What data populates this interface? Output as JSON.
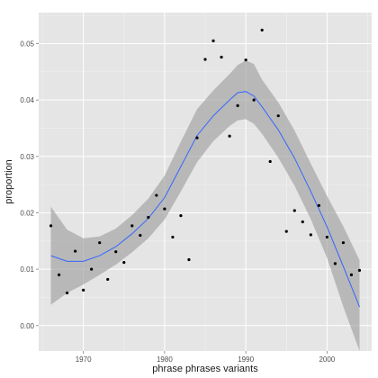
{
  "chart_data": {
    "type": "scatter",
    "xlabel": "phrase phrases variants",
    "ylabel": "proportion",
    "xlim": [
      1964.5,
      2005.5
    ],
    "ylim": [
      -0.0045,
      0.0555
    ],
    "x_ticks": [
      1970,
      1980,
      1990,
      2000
    ],
    "y_ticks": [
      0.0,
      0.01,
      0.02,
      0.03,
      0.04,
      0.05
    ],
    "y_tick_labels": [
      "0.00",
      "0.01",
      "0.02",
      "0.03",
      "0.04",
      "0.05"
    ],
    "grid": true,
    "colors": {
      "panel": "#e5e5e5",
      "grid_major": "#ffffff",
      "grid_minor": "#f2f2f2",
      "point": "#000000",
      "smooth_line": "#3366ff",
      "ribbon": "#999999"
    },
    "points": {
      "x": [
        1966,
        1967,
        1968,
        1969,
        1970,
        1971,
        1972,
        1973,
        1974,
        1975,
        1976,
        1977,
        1978,
        1979,
        1980,
        1981,
        1982,
        1983,
        1984,
        1985,
        1986,
        1987,
        1988,
        1989,
        1990,
        1991,
        1992,
        1993,
        1994,
        1995,
        1996,
        1997,
        1998,
        1999,
        2000,
        2001,
        2002,
        2003,
        2004
      ],
      "y": [
        0.0177,
        0.009,
        0.0058,
        0.0132,
        0.0063,
        0.01,
        0.0147,
        0.0082,
        0.0131,
        0.0112,
        0.0177,
        0.016,
        0.0192,
        0.0231,
        0.0207,
        0.0157,
        0.0195,
        0.0117,
        0.0333,
        0.0472,
        0.0505,
        0.0476,
        0.0336,
        0.039,
        0.0471,
        0.04,
        0.0524,
        0.0291,
        0.0372,
        0.0167,
        0.0204,
        0.0184,
        0.0161,
        0.0213,
        0.0157,
        0.011,
        0.0147,
        0.009,
        0.0098
      ]
    },
    "smooth": {
      "x": [
        1966,
        1968,
        1970,
        1972,
        1974,
        1976,
        1978,
        1980,
        1982,
        1984,
        1986,
        1988,
        1989,
        1990,
        1991,
        1992,
        1994,
        1996,
        1998,
        2000,
        2002,
        2004
      ],
      "y": [
        0.0124,
        0.0114,
        0.0114,
        0.0124,
        0.014,
        0.0163,
        0.019,
        0.0227,
        0.0282,
        0.0337,
        0.0372,
        0.04,
        0.0413,
        0.0415,
        0.0407,
        0.0388,
        0.0347,
        0.0297,
        0.0238,
        0.0175,
        0.0105,
        0.0033
      ],
      "ymin": [
        0.0037,
        0.0058,
        0.0073,
        0.009,
        0.0108,
        0.013,
        0.0155,
        0.0188,
        0.0238,
        0.029,
        0.0327,
        0.0354,
        0.0364,
        0.0366,
        0.0358,
        0.034,
        0.0298,
        0.0248,
        0.0189,
        0.012,
        0.0034,
        -0.005
      ],
      "ymax": [
        0.0211,
        0.017,
        0.0155,
        0.0158,
        0.0172,
        0.0196,
        0.0225,
        0.0266,
        0.0326,
        0.0384,
        0.0417,
        0.0446,
        0.0462,
        0.047,
        0.0464,
        0.0436,
        0.0396,
        0.0346,
        0.0287,
        0.023,
        0.0176,
        0.0116
      ]
    }
  }
}
